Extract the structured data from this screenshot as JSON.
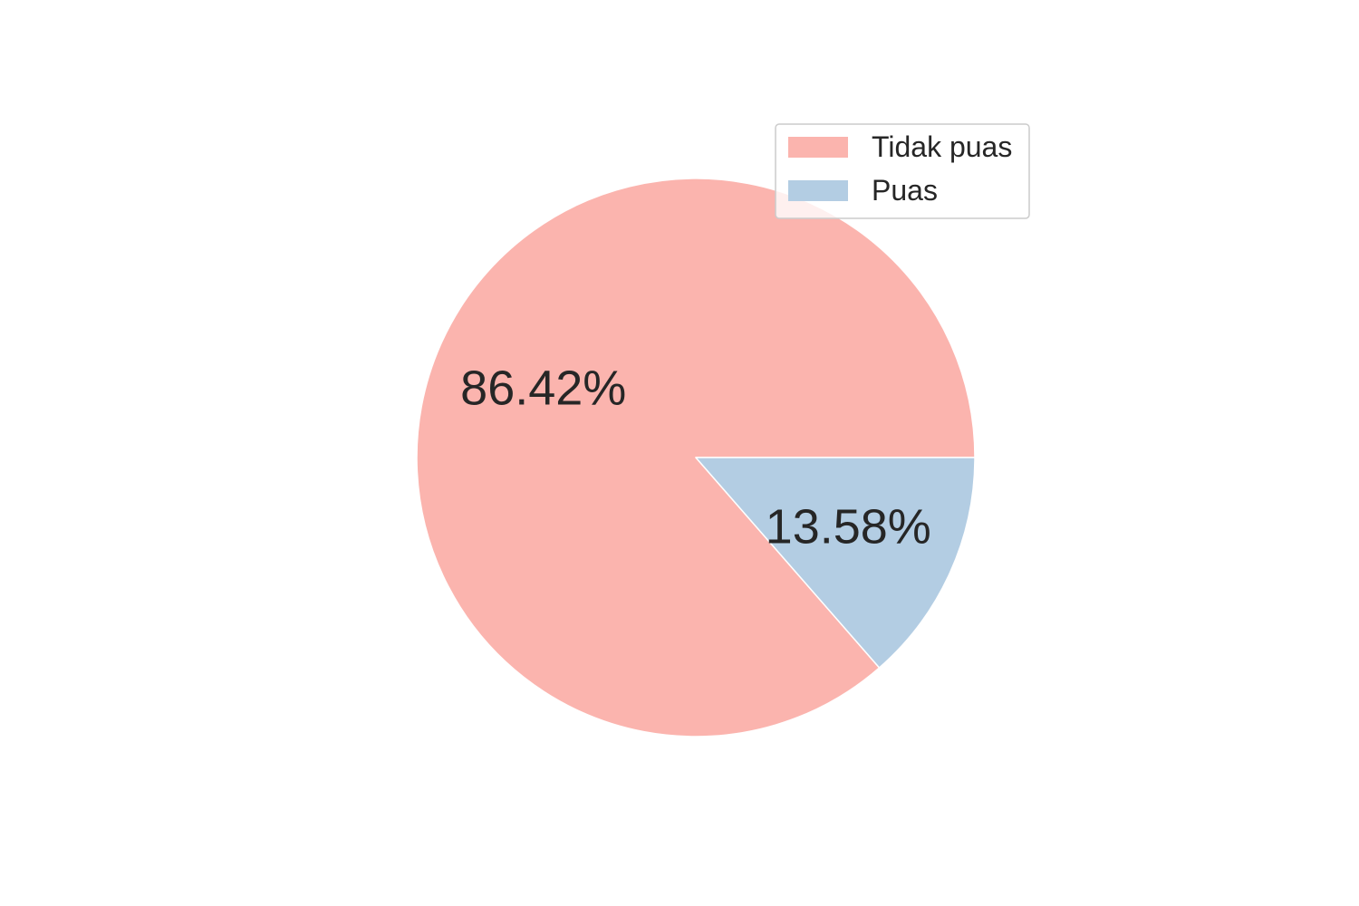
{
  "chart_data": {
    "type": "pie",
    "categories": [
      "Tidak puas",
      "Puas"
    ],
    "values": [
      86.42,
      13.58
    ],
    "value_labels": [
      "86.42%",
      "13.58%"
    ],
    "colors": [
      "#fbb4ae",
      "#b3cde3"
    ],
    "start_angle_deg": 0,
    "direction": "counterclockwise",
    "legend": {
      "placement": "upper-right",
      "entries": [
        "Tidak puas",
        "Puas"
      ]
    },
    "title": ""
  }
}
